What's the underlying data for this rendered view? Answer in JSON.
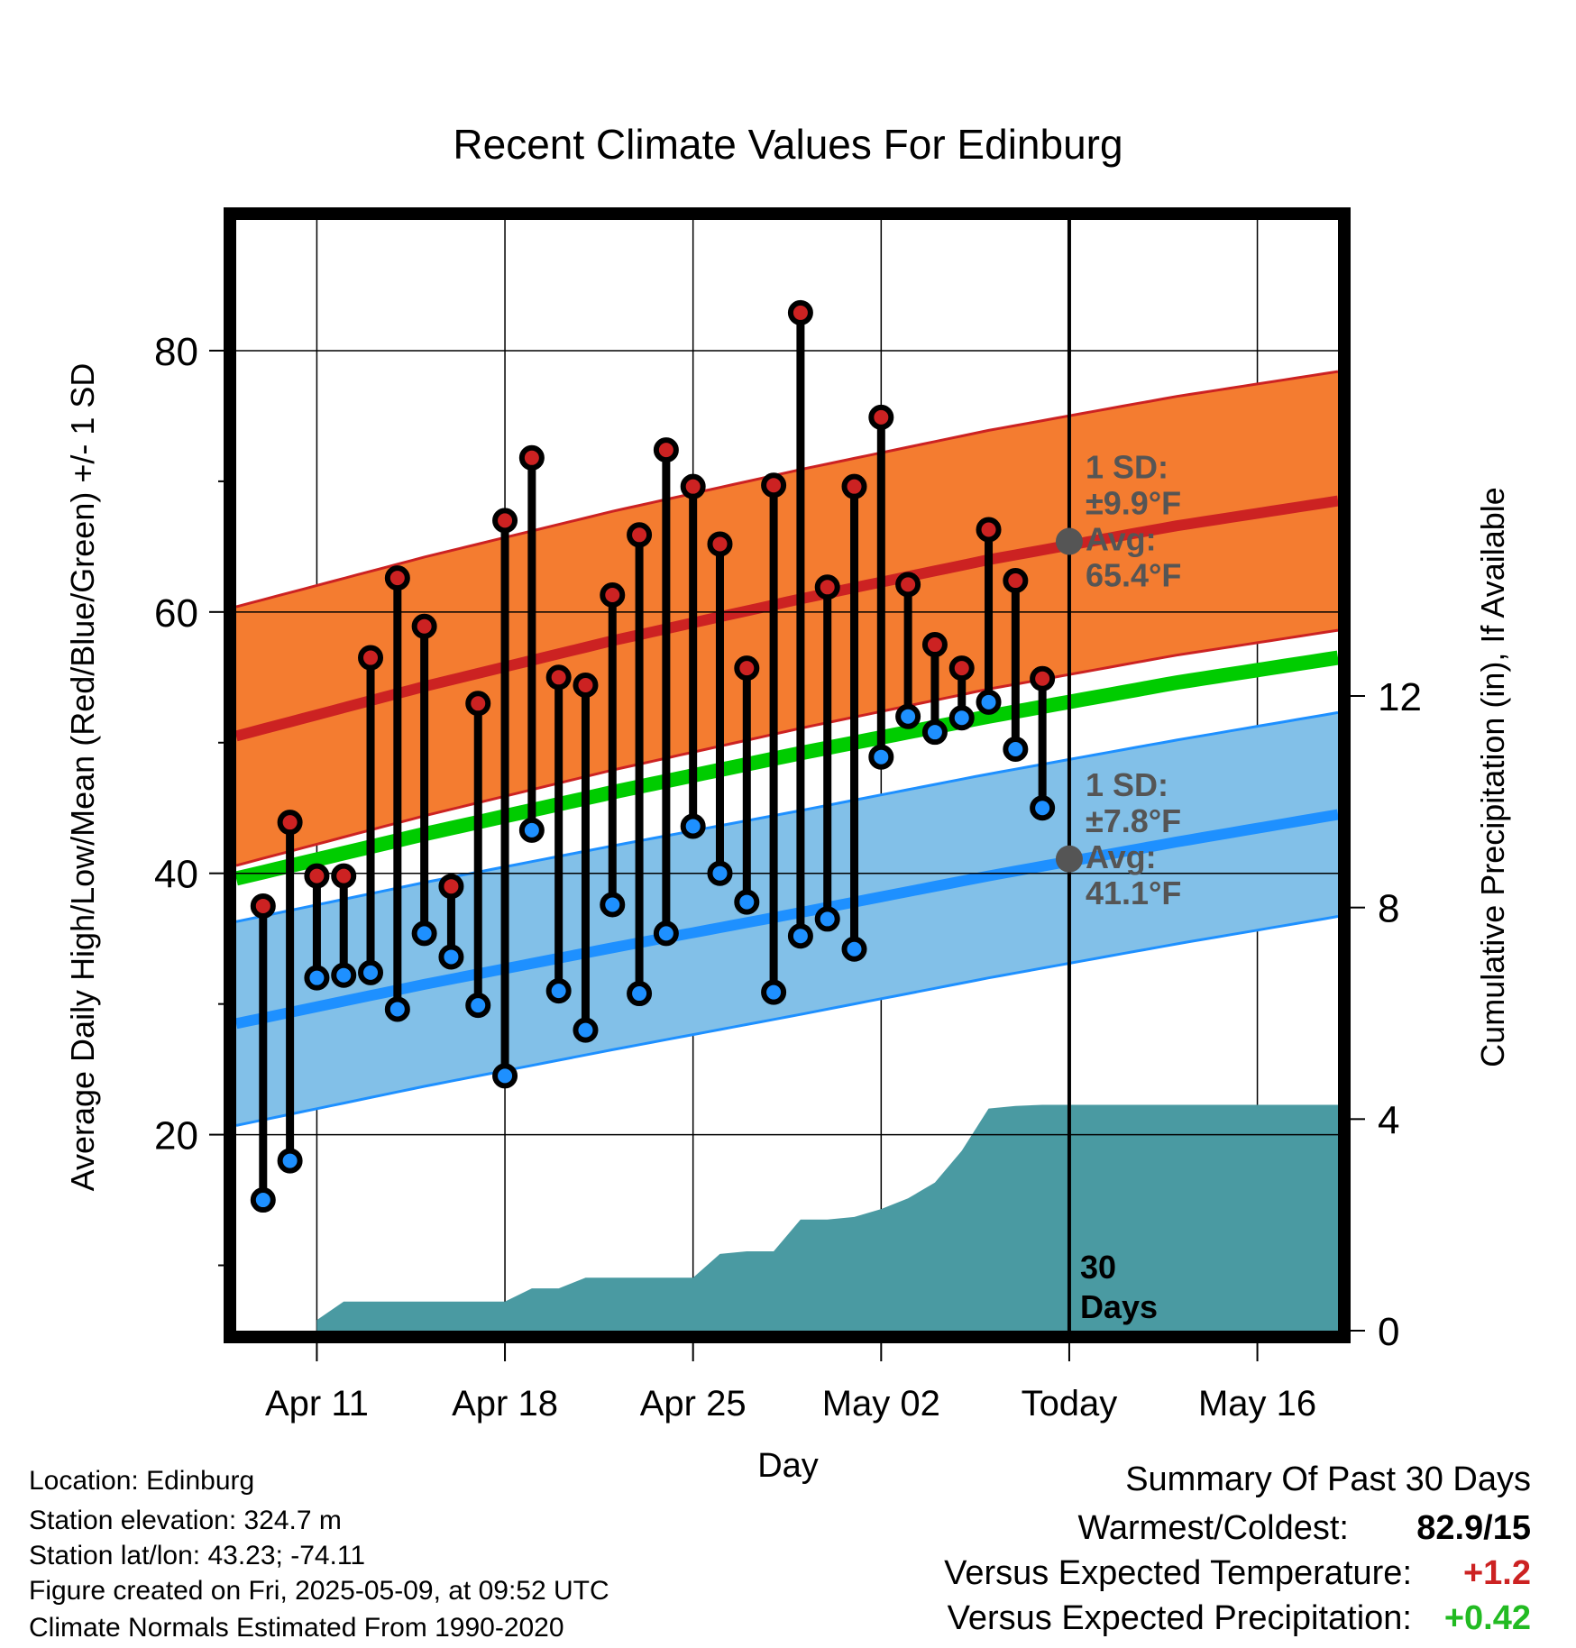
{
  "chart_data": {
    "type": "line",
    "title": "Recent Climate Values For Edinburg",
    "xlabel": "Day",
    "ylabel": "Average Daily High/Low/Mean (Red/Blue/Green) +/- 1 SD",
    "y2label": "Cumulative Precipitation (in), If Available",
    "ylim": [
      5,
      90
    ],
    "y2lim": [
      0,
      21
    ],
    "xlim": [
      "2025-04-08",
      "2025-05-19"
    ],
    "y_ticks": [
      "20",
      "40",
      "60",
      "80"
    ],
    "y2_ticks": [
      "0",
      "4",
      "8",
      "12"
    ],
    "x_ticks": [
      {
        "date": "2025-04-11",
        "label": "Apr 11"
      },
      {
        "date": "2025-04-18",
        "label": "Apr 18"
      },
      {
        "date": "2025-04-25",
        "label": "Apr 25"
      },
      {
        "date": "2025-05-02",
        "label": "May 02"
      },
      {
        "date": "2025-05-09",
        "label": "Today"
      },
      {
        "date": "2025-05-16",
        "label": "May 16"
      }
    ],
    "grid": true,
    "today": "2025-05-09",
    "window_label": "30 Days",
    "colors": {
      "high": "#cc2222",
      "low": "#1e90ff",
      "mean": "#00cc00",
      "high_band": "#f47c30",
      "low_band": "#82c0e8",
      "precip": "#4a9aa2",
      "marker_avg": "#555555",
      "annotation": "#555555",
      "stem": "#000000",
      "frame": "#000000"
    },
    "normals": {
      "x": [
        "2025-04-08",
        "2025-04-15",
        "2025-04-22",
        "2025-04-29",
        "2025-05-06",
        "2025-05-13",
        "2025-05-19"
      ],
      "high_mean": [
        50.5,
        54.3,
        57.8,
        61.0,
        64.0,
        66.6,
        68.5
      ],
      "high_sd": 9.9,
      "low_mean": [
        28.5,
        31.5,
        34.3,
        37.0,
        39.8,
        42.4,
        44.5
      ],
      "low_sd": 7.8,
      "mean": [
        39.6,
        43.0,
        46.2,
        49.2,
        52.0,
        54.6,
        56.5
      ]
    },
    "annotations": [
      {
        "name": "high-normal",
        "lines": [
          "1 SD:",
          "±9.9°F",
          "Avg:",
          "65.4°F"
        ],
        "avg": 65.4
      },
      {
        "name": "low-normal",
        "lines": [
          "1 SD:",
          "±7.8°F",
          "Avg:",
          "41.1°F"
        ],
        "avg": 41.1
      }
    ],
    "series": [
      {
        "name": "High",
        "x": [
          "2025-04-09",
          "2025-04-10",
          "2025-04-11",
          "2025-04-12",
          "2025-04-13",
          "2025-04-14",
          "2025-04-15",
          "2025-04-16",
          "2025-04-17",
          "2025-04-18",
          "2025-04-19",
          "2025-04-20",
          "2025-04-21",
          "2025-04-22",
          "2025-04-23",
          "2025-04-24",
          "2025-04-25",
          "2025-04-26",
          "2025-04-27",
          "2025-04-28",
          "2025-04-29",
          "2025-04-30",
          "2025-05-01",
          "2025-05-02",
          "2025-05-03",
          "2025-05-04",
          "2025-05-05",
          "2025-05-06",
          "2025-05-07",
          "2025-05-08"
        ],
        "values": [
          37.5,
          43.9,
          39.8,
          39.8,
          56.5,
          62.6,
          58.9,
          39.0,
          53.0,
          67.0,
          71.8,
          55.0,
          54.4,
          61.3,
          65.9,
          72.4,
          69.6,
          65.2,
          55.7,
          69.7,
          82.9,
          61.9,
          69.6,
          74.9,
          62.1,
          57.5,
          55.7,
          66.3,
          62.4,
          54.9
        ]
      },
      {
        "name": "Low",
        "x": [
          "2025-04-09",
          "2025-04-10",
          "2025-04-11",
          "2025-04-12",
          "2025-04-13",
          "2025-04-14",
          "2025-04-15",
          "2025-04-16",
          "2025-04-17",
          "2025-04-18",
          "2025-04-19",
          "2025-04-20",
          "2025-04-21",
          "2025-04-22",
          "2025-04-23",
          "2025-04-24",
          "2025-04-25",
          "2025-04-26",
          "2025-04-27",
          "2025-04-28",
          "2025-04-29",
          "2025-04-30",
          "2025-05-01",
          "2025-05-02",
          "2025-05-03",
          "2025-05-04",
          "2025-05-05",
          "2025-05-06",
          "2025-05-07",
          "2025-05-08"
        ],
        "values": [
          15.0,
          18.0,
          32.0,
          32.2,
          32.4,
          29.6,
          35.4,
          33.6,
          29.9,
          24.5,
          43.3,
          31.0,
          28.0,
          37.6,
          30.8,
          35.4,
          43.6,
          40.0,
          37.8,
          30.9,
          35.2,
          36.5,
          34.2,
          48.9,
          52.0,
          50.8,
          51.9,
          53.1,
          49.5,
          45.0
        ]
      },
      {
        "name": "Cumulative Precipitation",
        "x": [
          "2025-04-11",
          "2025-04-12",
          "2025-04-17",
          "2025-04-18",
          "2025-04-19",
          "2025-04-20",
          "2025-04-21",
          "2025-04-24",
          "2025-04-25",
          "2025-04-26",
          "2025-04-27",
          "2025-04-28",
          "2025-04-29",
          "2025-04-30",
          "2025-05-01",
          "2025-05-02",
          "2025-05-03",
          "2025-05-04",
          "2025-05-05",
          "2025-05-06",
          "2025-05-07",
          "2025-05-08",
          "2025-05-09",
          "2025-05-19"
        ],
        "values": [
          0.2,
          0.55,
          0.55,
          0.55,
          0.8,
          0.8,
          1.0,
          1.0,
          1.0,
          1.45,
          1.5,
          1.5,
          2.1,
          2.1,
          2.15,
          2.3,
          2.5,
          2.8,
          3.4,
          4.2,
          4.25,
          4.27,
          4.27,
          4.27
        ]
      }
    ]
  },
  "info": {
    "location": "Location: Edinburg",
    "elevation": "Station elevation: 324.7 m",
    "latlon": "Station lat/lon: 43.23; -74.11",
    "created": "Figure created on Fri, 2025-05-09, at 09:52 UTC",
    "normals": "Climate Normals Estimated From 1990-2020"
  },
  "summary": {
    "title": "Summary Of Past 30 Days",
    "warmest_coldest_label": "Warmest/Coldest:",
    "warmest_coldest_value": "82.9/15",
    "temp_label": "Versus Expected Temperature:",
    "temp_value": "+1.2",
    "temp_color": "#cc2222",
    "precip_label": "Versus Expected Precipitation:",
    "precip_value": "+0.42",
    "precip_color": "#22bb22"
  }
}
